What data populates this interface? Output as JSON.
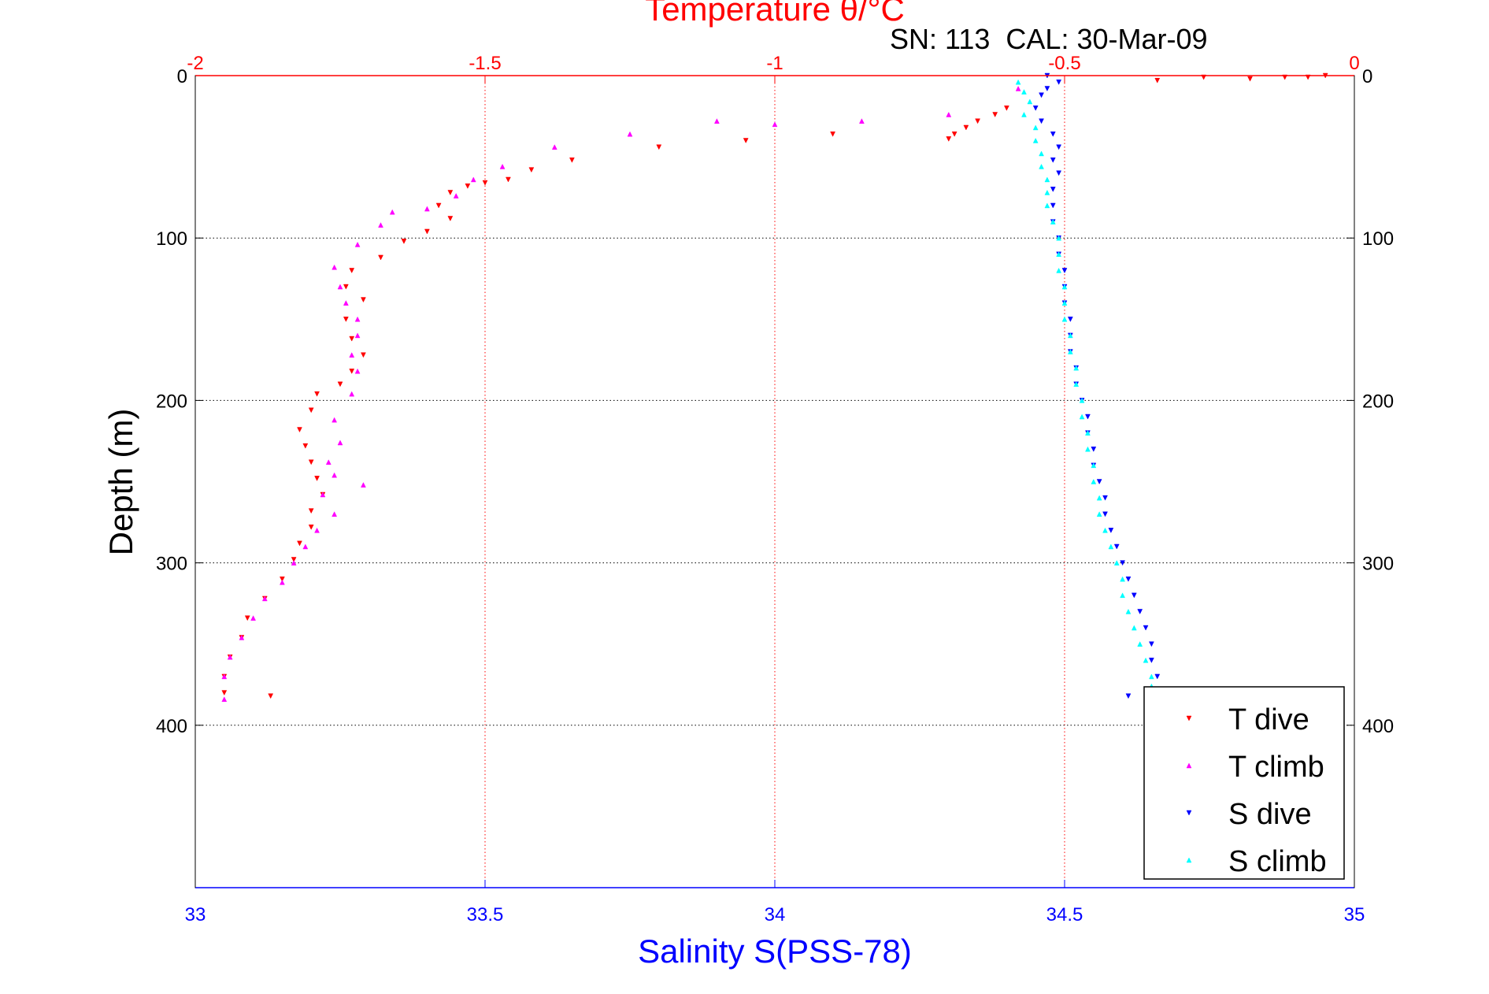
{
  "colors": {
    "t_dive": "#ff0000",
    "t_climb": "#ff00ff",
    "s_dive": "#0000ff",
    "s_climb": "#00ffff",
    "temperature_axis": "#ff0000",
    "salinity_axis": "#0000ff",
    "depth_axis": "#000000",
    "grid_temperature": "#ff0000",
    "grid_depth": "#000000"
  },
  "chart_data": {
    "type": "scatter",
    "title": "Temperature θ/°C",
    "subtitle": "SN: 113  CAL: 30-Mar-09",
    "xlabel": "Salinity S(PSS-78)",
    "x2label": "Temperature θ/°C",
    "ylabel": "Depth (m)",
    "xlim": [
      33,
      35
    ],
    "x2lim": [
      -2,
      0
    ],
    "ylim": [
      0,
      500
    ],
    "y_reversed": true,
    "grid": true,
    "legend_position": "bottom-right",
    "x_ticks": [
      "33",
      "33.5",
      "34",
      "34.5",
      "35"
    ],
    "x_tick_values": [
      33,
      33.5,
      34,
      34.5,
      35
    ],
    "x2_ticks": [
      "-2",
      "-1.5",
      "-1",
      "-0.5",
      "0"
    ],
    "x2_tick_values": [
      -2,
      -1.5,
      -1,
      -0.5,
      0
    ],
    "y_ticks": [
      "0",
      "100",
      "200",
      "300",
      "400"
    ],
    "y_tick_values": [
      0,
      100,
      200,
      300,
      400
    ],
    "series": [
      {
        "name": "T dive",
        "axis": "temperature",
        "marker": "triangle-down",
        "color": "#ff0000",
        "points": [
          [
            -0.05,
            0
          ],
          [
            -0.08,
            1
          ],
          [
            -0.12,
            1
          ],
          [
            -0.18,
            2
          ],
          [
            -0.26,
            1
          ],
          [
            -0.34,
            3
          ],
          [
            -0.6,
            20
          ],
          [
            -0.62,
            24
          ],
          [
            -0.65,
            28
          ],
          [
            -0.67,
            32
          ],
          [
            -0.69,
            36
          ],
          [
            -0.7,
            39
          ],
          [
            -0.9,
            36
          ],
          [
            -1.05,
            40
          ],
          [
            -1.2,
            44
          ],
          [
            -1.35,
            52
          ],
          [
            -1.42,
            58
          ],
          [
            -1.46,
            64
          ],
          [
            -1.5,
            66
          ],
          [
            -1.53,
            68
          ],
          [
            -1.56,
            72
          ],
          [
            -1.58,
            80
          ],
          [
            -1.56,
            88
          ],
          [
            -1.6,
            96
          ],
          [
            -1.64,
            102
          ],
          [
            -1.68,
            112
          ],
          [
            -1.73,
            120
          ],
          [
            -1.74,
            130
          ],
          [
            -1.71,
            138
          ],
          [
            -1.74,
            150
          ],
          [
            -1.73,
            162
          ],
          [
            -1.71,
            172
          ],
          [
            -1.73,
            182
          ],
          [
            -1.75,
            190
          ],
          [
            -1.79,
            196
          ],
          [
            -1.8,
            206
          ],
          [
            -1.82,
            218
          ],
          [
            -1.81,
            228
          ],
          [
            -1.8,
            238
          ],
          [
            -1.79,
            248
          ],
          [
            -1.78,
            258
          ],
          [
            -1.8,
            268
          ],
          [
            -1.8,
            278
          ],
          [
            -1.82,
            288
          ],
          [
            -1.83,
            298
          ],
          [
            -1.85,
            310
          ],
          [
            -1.88,
            322
          ],
          [
            -1.91,
            334
          ],
          [
            -1.92,
            346
          ],
          [
            -1.94,
            358
          ],
          [
            -1.95,
            370
          ],
          [
            -1.95,
            380
          ],
          [
            -1.87,
            382
          ]
        ]
      },
      {
        "name": "T climb",
        "axis": "temperature",
        "marker": "triangle-up",
        "color": "#ff00ff",
        "points": [
          [
            -0.58,
            8
          ],
          [
            -0.7,
            24
          ],
          [
            -0.85,
            28
          ],
          [
            -1.0,
            30
          ],
          [
            -1.1,
            28
          ],
          [
            -1.25,
            36
          ],
          [
            -1.38,
            44
          ],
          [
            -1.47,
            56
          ],
          [
            -1.52,
            64
          ],
          [
            -1.55,
            74
          ],
          [
            -1.6,
            82
          ],
          [
            -1.66,
            84
          ],
          [
            -1.68,
            92
          ],
          [
            -1.72,
            104
          ],
          [
            -1.76,
            118
          ],
          [
            -1.75,
            130
          ],
          [
            -1.74,
            140
          ],
          [
            -1.72,
            150
          ],
          [
            -1.72,
            160
          ],
          [
            -1.73,
            172
          ],
          [
            -1.72,
            182
          ],
          [
            -1.73,
            196
          ],
          [
            -1.76,
            212
          ],
          [
            -1.75,
            226
          ],
          [
            -1.77,
            238
          ],
          [
            -1.76,
            246
          ],
          [
            -1.71,
            252
          ],
          [
            -1.78,
            258
          ],
          [
            -1.76,
            270
          ],
          [
            -1.79,
            280
          ],
          [
            -1.81,
            290
          ],
          [
            -1.83,
            300
          ],
          [
            -1.85,
            312
          ],
          [
            -1.88,
            322
          ],
          [
            -1.9,
            334
          ],
          [
            -1.92,
            346
          ],
          [
            -1.94,
            358
          ],
          [
            -1.95,
            370
          ],
          [
            -1.95,
            384
          ]
        ]
      },
      {
        "name": "S dive",
        "axis": "salinity",
        "marker": "triangle-down",
        "color": "#0000ff",
        "points": [
          [
            34.47,
            0
          ],
          [
            34.49,
            4
          ],
          [
            34.47,
            8
          ],
          [
            34.46,
            12
          ],
          [
            34.45,
            20
          ],
          [
            34.46,
            28
          ],
          [
            34.48,
            36
          ],
          [
            34.49,
            44
          ],
          [
            34.48,
            52
          ],
          [
            34.49,
            60
          ],
          [
            34.48,
            70
          ],
          [
            34.48,
            80
          ],
          [
            34.48,
            90
          ],
          [
            34.49,
            100
          ],
          [
            34.49,
            110
          ],
          [
            34.5,
            120
          ],
          [
            34.5,
            130
          ],
          [
            34.5,
            140
          ],
          [
            34.51,
            150
          ],
          [
            34.51,
            160
          ],
          [
            34.51,
            170
          ],
          [
            34.52,
            180
          ],
          [
            34.52,
            190
          ],
          [
            34.53,
            200
          ],
          [
            34.54,
            210
          ],
          [
            34.54,
            220
          ],
          [
            34.55,
            230
          ],
          [
            34.55,
            240
          ],
          [
            34.56,
            250
          ],
          [
            34.57,
            260
          ],
          [
            34.57,
            270
          ],
          [
            34.58,
            280
          ],
          [
            34.59,
            290
          ],
          [
            34.6,
            300
          ],
          [
            34.61,
            310
          ],
          [
            34.62,
            320
          ],
          [
            34.63,
            330
          ],
          [
            34.64,
            340
          ],
          [
            34.65,
            350
          ],
          [
            34.65,
            360
          ],
          [
            34.66,
            370
          ],
          [
            34.61,
            382
          ]
        ]
      },
      {
        "name": "S climb",
        "axis": "salinity",
        "marker": "triangle-up",
        "color": "#00ffff",
        "points": [
          [
            34.42,
            4
          ],
          [
            34.43,
            10
          ],
          [
            34.44,
            16
          ],
          [
            34.43,
            24
          ],
          [
            34.45,
            32
          ],
          [
            34.45,
            40
          ],
          [
            34.46,
            48
          ],
          [
            34.46,
            56
          ],
          [
            34.47,
            64
          ],
          [
            34.47,
            72
          ],
          [
            34.47,
            80
          ],
          [
            34.48,
            90
          ],
          [
            34.49,
            100
          ],
          [
            34.49,
            110
          ],
          [
            34.49,
            120
          ],
          [
            34.5,
            130
          ],
          [
            34.5,
            140
          ],
          [
            34.5,
            150
          ],
          [
            34.51,
            160
          ],
          [
            34.51,
            170
          ],
          [
            34.52,
            180
          ],
          [
            34.52,
            190
          ],
          [
            34.53,
            200
          ],
          [
            34.53,
            210
          ],
          [
            34.54,
            220
          ],
          [
            34.54,
            230
          ],
          [
            34.55,
            240
          ],
          [
            34.55,
            250
          ],
          [
            34.56,
            260
          ],
          [
            34.56,
            270
          ],
          [
            34.57,
            280
          ],
          [
            34.58,
            290
          ],
          [
            34.59,
            300
          ],
          [
            34.6,
            310
          ],
          [
            34.6,
            320
          ],
          [
            34.61,
            330
          ],
          [
            34.62,
            340
          ],
          [
            34.63,
            350
          ],
          [
            34.64,
            360
          ],
          [
            34.65,
            370
          ],
          [
            34.65,
            376
          ]
        ]
      }
    ]
  }
}
